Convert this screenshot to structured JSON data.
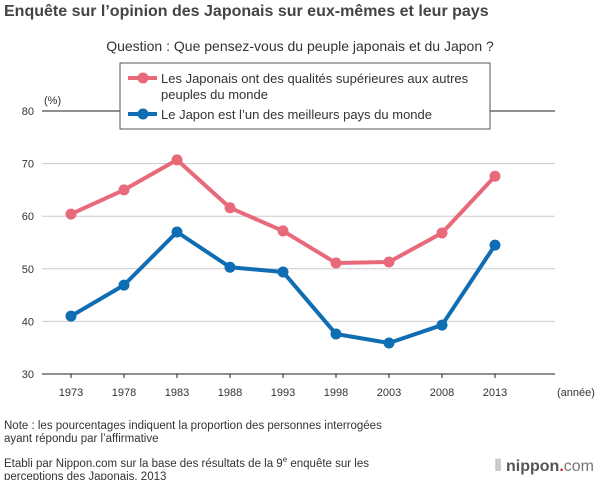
{
  "title": "Enquête sur l’opinion des Japonais sur eux-mêmes et leur pays",
  "question": "Question : Que pensez-vous du peuple japonais et du Japon ?",
  "chart_data": {
    "type": "line",
    "categories": [
      "1973",
      "1978",
      "1983",
      "1988",
      "1993",
      "1998",
      "2003",
      "2008",
      "2013"
    ],
    "xlabel": "(année)",
    "ylabel": "(%)",
    "ylim": [
      30,
      80
    ],
    "yticks": [
      30,
      40,
      50,
      60,
      70,
      80
    ],
    "grid": true,
    "legend_placement": "top-right",
    "series": [
      {
        "name": "Les Japonais ont des qualités supérieures aux autres peuples du monde",
        "name_lines": [
          "Les Japonais ont des qualités supérieures aux autres",
          "peuples du monde"
        ],
        "color": "#e8697a",
        "values": [
          60.4,
          65.0,
          70.7,
          61.6,
          57.2,
          51.1,
          51.3,
          56.8,
          67.6
        ]
      },
      {
        "name": "Le Japon est l’un des meilleurs pays du monde",
        "name_lines": [
          "Le Japon est l’un des meilleurs pays du monde"
        ],
        "color": "#0f6db3",
        "values": [
          41.0,
          46.9,
          57.0,
          50.3,
          49.4,
          37.6,
          35.9,
          39.3,
          54.5
        ]
      }
    ]
  },
  "notes": {
    "note_line1": "Note : les pourcentages indiquent la proportion des personnes interrogées",
    "note_line2": "ayant répondu par l’affirmative",
    "source_line1_a": "Etabli par Nippon.com sur la base des résultats de la 9",
    "source_sup": "e",
    "source_line1_b": " enquête sur les",
    "source_line2": "perceptions des Japonais, 2013"
  },
  "logo": {
    "name": "nippon",
    "dot": ".",
    "com": "com"
  }
}
